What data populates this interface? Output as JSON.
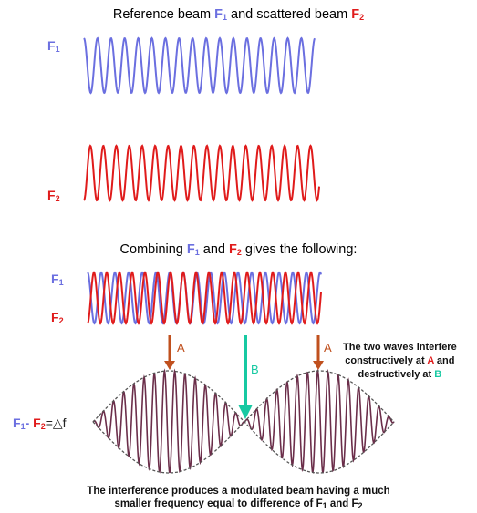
{
  "title_top": {
    "prefix": "Reference beam ",
    "f": "F",
    "one": "1",
    "mid": " and scattered beam ",
    "two": "2"
  },
  "labels": {
    "f": "F",
    "one": "1",
    "two": "2"
  },
  "title_combine": {
    "prefix": "Combining ",
    "and": " and ",
    "suffix": " gives the following:"
  },
  "arrows": {
    "a": "A",
    "b": "B"
  },
  "diff_label": {
    "minus": "- ",
    "eq": "=△f"
  },
  "side_note": {
    "line1": "The two waves interfere",
    "line2a": "constructively at ",
    "a": "A",
    "line2b": " and",
    "line3a": "destructively at ",
    "b": "B"
  },
  "bottom_note": {
    "line1": "The interference produces a modulated beam having a much",
    "line2a": "smaller frequency equal to difference of F",
    "one": "1",
    "and": " and F",
    "two": "2"
  },
  "colors": {
    "f1": "#6b6fe0",
    "f2": "#e01b1b",
    "arrow_a": "#c0501e",
    "arrow_b": "#17c9a2",
    "beat": "#6b2e4a",
    "envelope": "#555555"
  }
}
